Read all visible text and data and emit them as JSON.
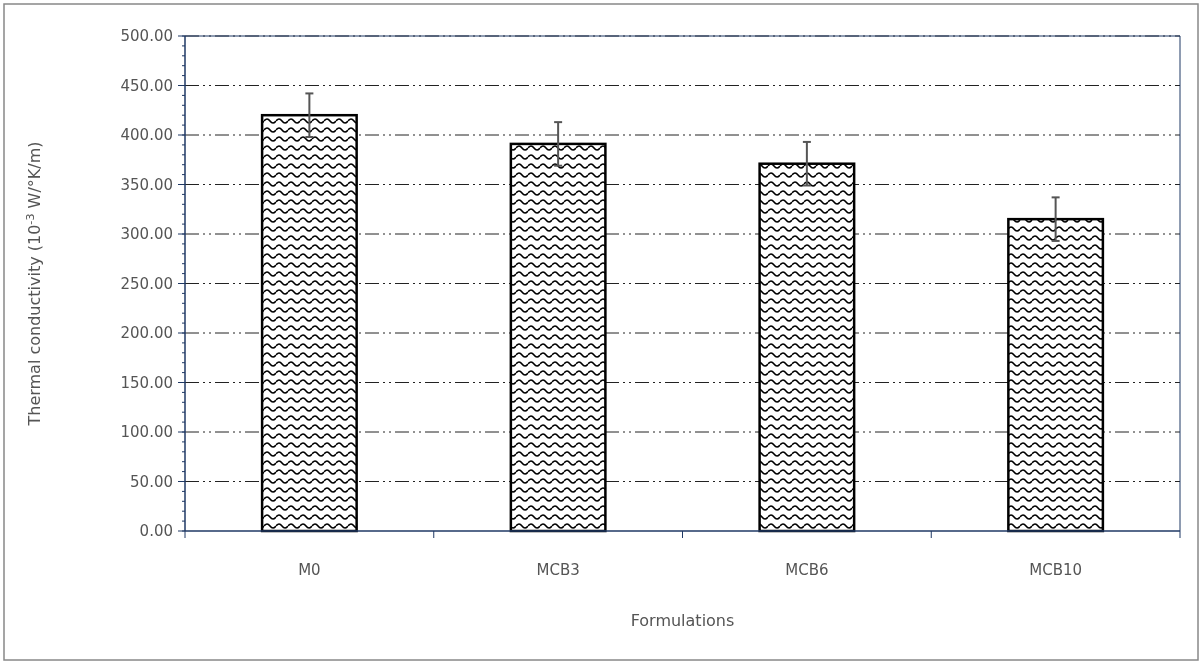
{
  "chart_data": {
    "type": "bar",
    "xlabel": "Formulations",
    "ylabel": "Thermal conductivity  (10$^{-3}$ W/°K/m)",
    "categories": [
      "M0",
      "MCB3",
      "MCB6",
      "MCB10"
    ],
    "values": [
      420,
      391,
      371,
      315
    ],
    "errors": [
      22,
      22,
      22,
      22
    ],
    "color": "#000000",
    "ylim": [
      0,
      500
    ],
    "yticks": [
      {
        "value": 0,
        "label": "0.00"
      },
      {
        "value": 50,
        "label": "50.00"
      },
      {
        "value": 100,
        "label": "100.00"
      },
      {
        "value": 150,
        "label": "150.00"
      },
      {
        "value": 200,
        "label": "200.00"
      },
      {
        "value": 250,
        "label": "250.00"
      },
      {
        "value": 300,
        "label": "300.00"
      },
      {
        "value": 350,
        "label": "350.00"
      },
      {
        "value": 400,
        "label": "400.00"
      },
      {
        "value": 450,
        "label": "450.00"
      },
      {
        "value": 500,
        "label": "500.00"
      }
    ],
    "grid": "y"
  }
}
